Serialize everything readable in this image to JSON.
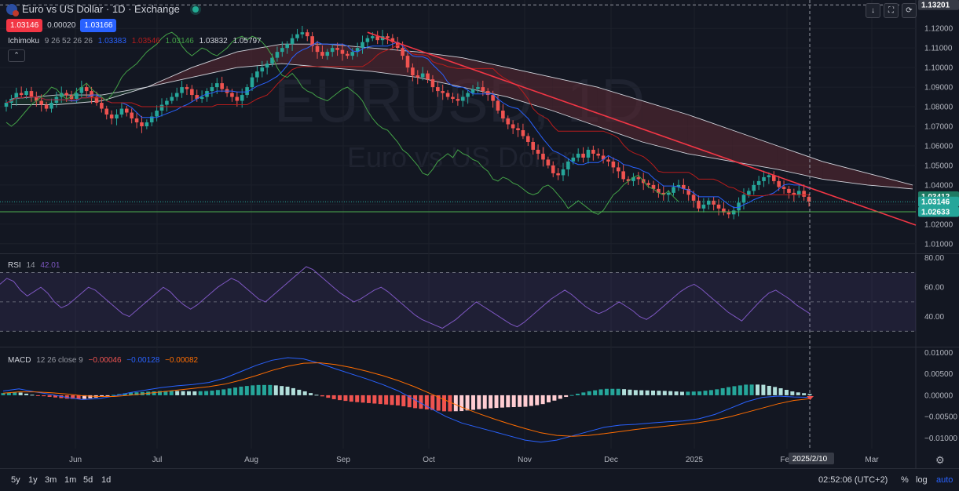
{
  "header": {
    "title": "Euro vs US Dollar · 1D · Exchange",
    "sell_price": "1.03146",
    "spread": "0.00020",
    "buy_price": "1.03166"
  },
  "indicators": {
    "ichimoku": {
      "name": "Ichimoku",
      "params": "9 26 52 26 26",
      "v1": "1.03383",
      "v2": "1.03546",
      "v3": "1.03146",
      "v4": "1.03832",
      "v5": "1.05797"
    },
    "rsi": {
      "name": "RSI",
      "params": "14",
      "value": "42.01"
    },
    "macd": {
      "name": "MACD",
      "params": "12 26 close 9",
      "v1": "−0.00046",
      "v2": "−0.00128",
      "v3": "−0.00082"
    }
  },
  "watermark": {
    "symbol": "EURUSD, 1D",
    "name": "Euro vs US Dollar"
  },
  "colors": {
    "bg": "#131722",
    "up": "#26a69a",
    "down": "#ef5350",
    "trend": "#f23645",
    "support": "#4caf50",
    "rsi": "#7e57c2",
    "macd": "#2962ff",
    "signal": "#ff6d00",
    "tenkan": "#2962ff",
    "kijun": "#b71c1c",
    "chikou": "#43a047",
    "cloud_bear": "#5d2a33",
    "cloud_bull": "#1b3d2c"
  },
  "chart_data": [
    {
      "type": "candlestick",
      "title": "Euro vs US Dollar · 1D · Exchange",
      "x_ticks": [
        "Jun",
        "Jul",
        "Aug",
        "Sep",
        "Oct",
        "Nov",
        "Dec",
        "2025",
        "Feb",
        "Mar"
      ],
      "y_ticks": [
        "1.13201",
        "1.12000",
        "1.11000",
        "1.10000",
        "1.09000",
        "1.08000",
        "1.07000",
        "1.06000",
        "1.05000",
        "1.04000",
        "1.03000",
        "1.02000",
        "1.01000"
      ],
      "ylim": [
        1.0055,
        1.1345
      ],
      "price_labels": [
        {
          "label": "1.13201",
          "value": 1.13201,
          "color": "#363a45"
        },
        {
          "label": "1.03412",
          "value": 1.03412,
          "color": "#1e7a63"
        },
        {
          "label": "1.03146",
          "value": 1.03146,
          "color": "#26a69a"
        },
        {
          "label": "1.02633",
          "value": 1.02633,
          "color": "#26a69a"
        }
      ],
      "closes": [
        1.082,
        1.084,
        1.087,
        1.086,
        1.088,
        1.085,
        1.083,
        1.081,
        1.079,
        1.082,
        1.085,
        1.087,
        1.086,
        1.084,
        1.087,
        1.09,
        1.088,
        1.085,
        1.082,
        1.079,
        1.076,
        1.074,
        1.076,
        1.079,
        1.077,
        1.074,
        1.072,
        1.07,
        1.072,
        1.075,
        1.078,
        1.081,
        1.083,
        1.085,
        1.087,
        1.09,
        1.089,
        1.086,
        1.084,
        1.085,
        1.088,
        1.09,
        1.092,
        1.089,
        1.087,
        1.085,
        1.083,
        1.086,
        1.09,
        1.095,
        1.098,
        1.1,
        1.102,
        1.105,
        1.108,
        1.11,
        1.112,
        1.115,
        1.117,
        1.118,
        1.116,
        1.111,
        1.108,
        1.106,
        1.108,
        1.11,
        1.109,
        1.107,
        1.106,
        1.108,
        1.11,
        1.113,
        1.115,
        1.116,
        1.114,
        1.116,
        1.115,
        1.113,
        1.11,
        1.106,
        1.1,
        1.096,
        1.095,
        1.097,
        1.094,
        1.09,
        1.088,
        1.087,
        1.085,
        1.084,
        1.083,
        1.085,
        1.087,
        1.089,
        1.09,
        1.088,
        1.086,
        1.083,
        1.078,
        1.074,
        1.071,
        1.069,
        1.068,
        1.065,
        1.062,
        1.058,
        1.056,
        1.053,
        1.05,
        1.046,
        1.045,
        1.048,
        1.052,
        1.054,
        1.056,
        1.054,
        1.058,
        1.056,
        1.055,
        1.053,
        1.052,
        1.049,
        1.047,
        1.043,
        1.042,
        1.044,
        1.043,
        1.041,
        1.04,
        1.038,
        1.036,
        1.035,
        1.036,
        1.039,
        1.04,
        1.038,
        1.035,
        1.032,
        1.028,
        1.03,
        1.032,
        1.03,
        1.028,
        1.026,
        1.025,
        1.027,
        1.031,
        1.035,
        1.037,
        1.04,
        1.042,
        1.044,
        1.045,
        1.042,
        1.039,
        1.038,
        1.036,
        1.035,
        1.037,
        1.034,
        1.0315
      ],
      "ichimoku_cloud": {
        "span_a": [
          1.084,
          1.086,
          1.086,
          1.09,
          1.095,
          1.1,
          1.102,
          1.1,
          1.098,
          1.095,
          1.09,
          1.085,
          1.078,
          1.07,
          1.062,
          1.056,
          1.052,
          1.048,
          1.043,
          1.04,
          1.038
        ],
        "span_b": [
          1.081,
          1.081,
          1.083,
          1.09,
          1.1,
          1.108,
          1.112,
          1.112,
          1.11,
          1.108,
          1.105,
          1.1,
          1.095,
          1.09,
          1.083,
          1.076,
          1.068,
          1.06,
          1.052,
          1.046,
          1.04
        ]
      }
    },
    {
      "type": "line",
      "title": "RSI 14",
      "y_ticks": [
        "80.00",
        "60.00",
        "40.00"
      ],
      "ylim": [
        20,
        82
      ],
      "bands": {
        "upper": 70,
        "middle": 50,
        "lower": 30
      },
      "values": [
        62,
        66,
        64,
        58,
        54,
        57,
        60,
        56,
        50,
        46,
        48,
        52,
        56,
        60,
        58,
        54,
        50,
        46,
        42,
        40,
        44,
        48,
        52,
        56,
        60,
        57,
        52,
        48,
        45,
        48,
        52,
        56,
        60,
        63,
        66,
        64,
        60,
        56,
        52,
        50,
        54,
        58,
        62,
        66,
        70,
        74,
        72,
        68,
        64,
        60,
        56,
        53,
        50,
        52,
        55,
        58,
        60,
        57,
        53,
        49,
        45,
        41,
        38,
        36,
        34,
        32,
        35,
        38,
        42,
        46,
        50,
        47,
        44,
        41,
        38,
        35,
        33,
        36,
        40,
        44,
        48,
        52,
        55,
        58,
        55,
        51,
        47,
        44,
        42,
        44,
        47,
        50,
        47,
        44,
        40,
        38,
        41,
        45,
        49,
        53,
        57,
        60,
        62,
        59,
        55,
        51,
        47,
        43,
        40,
        37,
        42,
        47,
        52,
        56,
        58,
        55,
        52,
        48,
        45,
        42
      ],
      "last": 42.01
    },
    {
      "type": "bar+line",
      "title": "MACD 12 26 close 9",
      "y_ticks": [
        "0.01000",
        "0.00500",
        "0.00000",
        "−0.00500",
        "−0.01000"
      ],
      "ylim": [
        -0.0125,
        0.011
      ],
      "series": [
        {
          "name": "MACD",
          "values": [
            0.001,
            0.0015,
            0.0008,
            0.0002,
            -0.0005,
            -0.001,
            -0.0008,
            -0.0002,
            0.0006,
            0.0012,
            0.0018,
            0.0022,
            0.0025,
            0.003,
            0.004,
            0.0055,
            0.007,
            0.0082,
            0.0088,
            0.0085,
            0.0075,
            0.0062,
            0.005,
            0.0038,
            0.0025,
            0.001,
            -0.001,
            -0.003,
            -0.005,
            -0.0065,
            -0.0075,
            -0.0085,
            -0.0095,
            -0.0105,
            -0.011,
            -0.0105,
            -0.0095,
            -0.0085,
            -0.0075,
            -0.007,
            -0.0068,
            -0.0065,
            -0.0062,
            -0.006,
            -0.0055,
            -0.0045,
            -0.003,
            -0.0015,
            -0.0005,
            -0.0002,
            -0.0004,
            -0.0005
          ]
        },
        {
          "name": "Signal",
          "values": [
            0.0005,
            0.0008,
            0.0008,
            0.0006,
            0.0003,
            -0.0001,
            -0.0003,
            -0.0003,
            0.0,
            0.0004,
            0.0008,
            0.0012,
            0.0016,
            0.002,
            0.0026,
            0.0035,
            0.0046,
            0.0058,
            0.0068,
            0.0075,
            0.0076,
            0.0072,
            0.0065,
            0.0056,
            0.0046,
            0.0034,
            0.002,
            0.0004,
            -0.0012,
            -0.0028,
            -0.0042,
            -0.0055,
            -0.0067,
            -0.0078,
            -0.0088,
            -0.0094,
            -0.0096,
            -0.0094,
            -0.009,
            -0.0085,
            -0.008,
            -0.0076,
            -0.0072,
            -0.0068,
            -0.0064,
            -0.0058,
            -0.005,
            -0.004,
            -0.003,
            -0.002,
            -0.0012,
            -0.0008
          ]
        }
      ]
    }
  ],
  "crosshair_date": "2025/2/10",
  "bottom": {
    "ranges": [
      "5y",
      "1y",
      "3m",
      "1m",
      "5d",
      "1d"
    ],
    "time": "02:52:06 (UTC+2)",
    "pct": "%",
    "log": "log",
    "auto": "auto"
  }
}
